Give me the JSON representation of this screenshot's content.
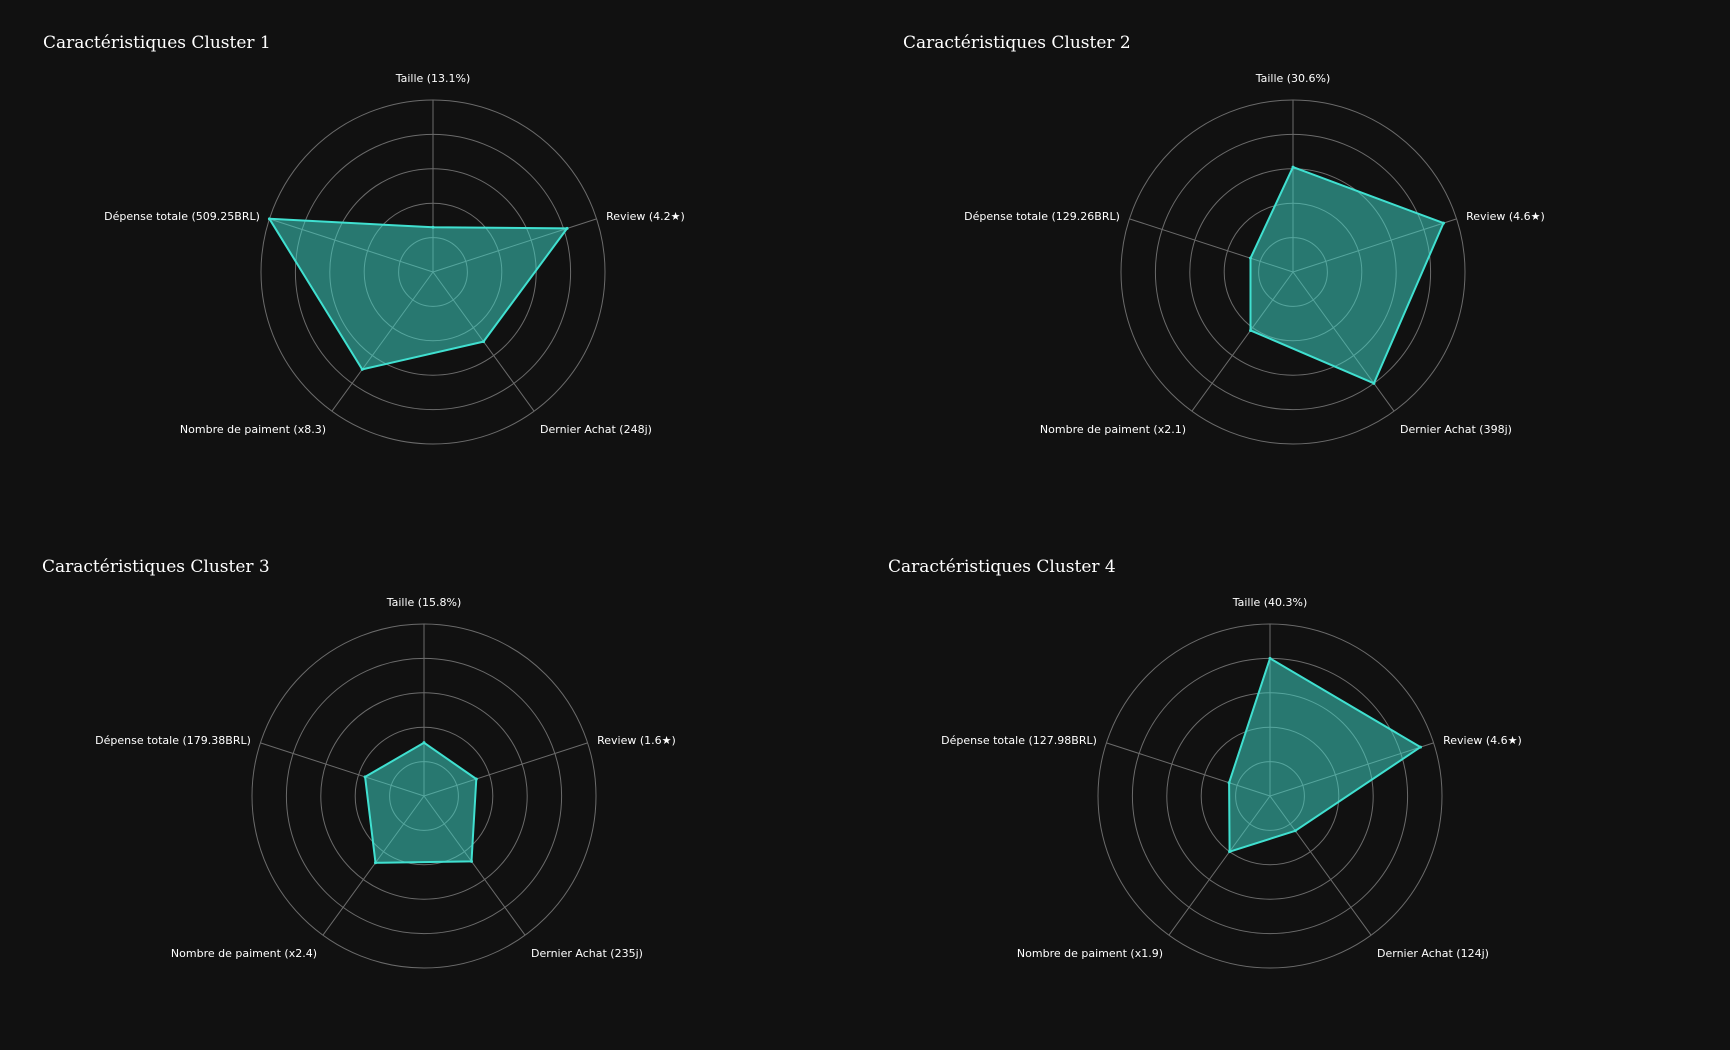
{
  "style": {
    "background": "#111111",
    "grid": "#6b6b6b",
    "fill": "#40e0d0",
    "fill_opacity": 0.5,
    "stroke": "#40e0d0",
    "text": "#ffffff"
  },
  "chart_data": [
    {
      "type": "radar",
      "title": "Caractéristiques Cluster 1",
      "axes": [
        "Taille (13.1%)",
        "Review (4.2★)",
        "Dernier Achat (248j)",
        "Nombre de paiment (x8.3)",
        "Dépense totale (509.25BRL)"
      ],
      "values": [
        0.26,
        0.82,
        0.5,
        0.7,
        1.0
      ],
      "rlim": [
        0,
        1
      ],
      "rings": 5,
      "grid": true
    },
    {
      "type": "radar",
      "title": "Caractéristiques Cluster 2",
      "axes": [
        "Taille (30.6%)",
        "Review (4.6★)",
        "Dernier Achat (398j)",
        "Nombre de paiment (x2.1)",
        "Dépense totale (129.26BRL)"
      ],
      "values": [
        0.61,
        0.92,
        0.8,
        0.42,
        0.26
      ],
      "rlim": [
        0,
        1
      ],
      "rings": 5,
      "grid": true
    },
    {
      "type": "radar",
      "title": "Caractéristiques Cluster 3",
      "axes": [
        "Taille (15.8%)",
        "Review (1.6★)",
        "Dernier Achat (235j)",
        "Nombre de paiment (x2.4)",
        "Dépense totale (179.38BRL)"
      ],
      "values": [
        0.31,
        0.32,
        0.47,
        0.48,
        0.36
      ],
      "rlim": [
        0,
        1
      ],
      "rings": 5,
      "grid": true
    },
    {
      "type": "radar",
      "title": "Caractéristiques Cluster 4",
      "axes": [
        "Taille (40.3%)",
        "Review (4.6★)",
        "Dernier Achat (124j)",
        "Nombre de paiment (x1.9)",
        "Dépense totale (127.98BRL)"
      ],
      "values": [
        0.8,
        0.92,
        0.25,
        0.4,
        0.25
      ],
      "rlim": [
        0,
        1
      ],
      "rings": 5,
      "grid": true
    }
  ]
}
